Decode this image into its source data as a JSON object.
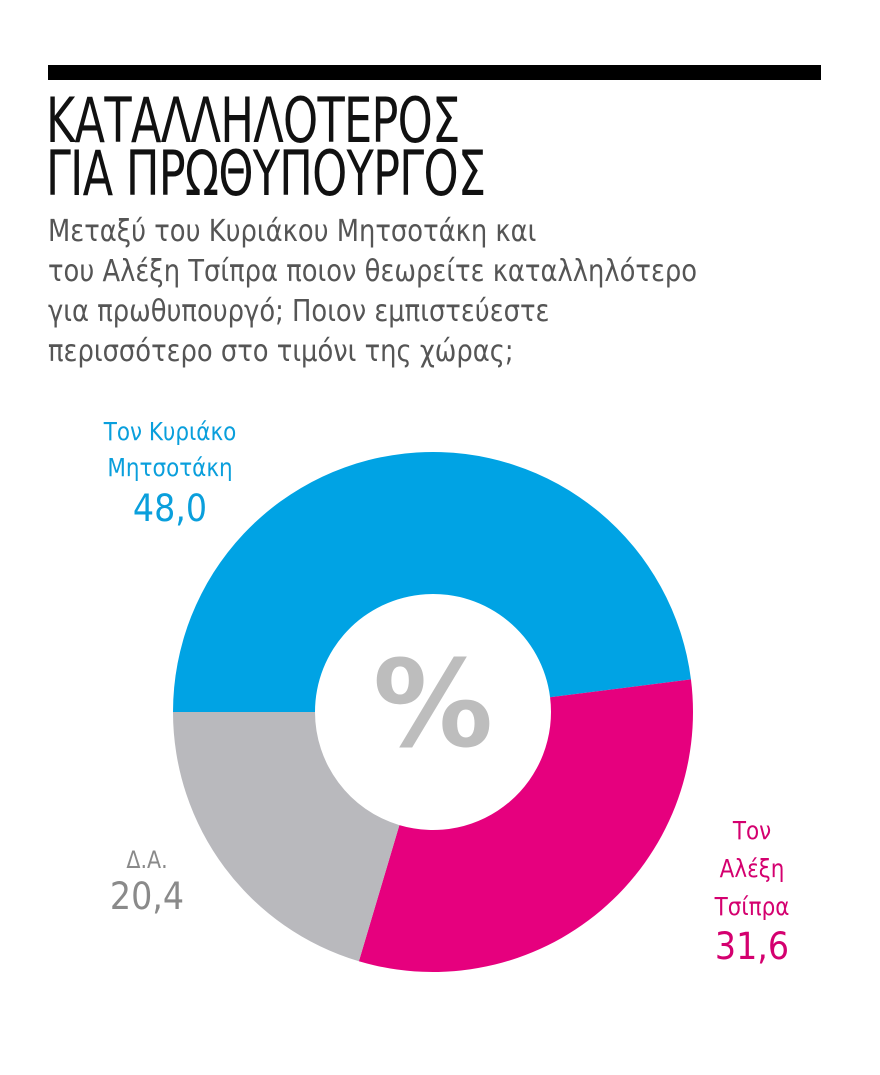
{
  "header": {
    "title_lines": [
      "ΚΑΤΑΛΛΗΛΟΤΕΡΟΣ",
      "ΓΙΑ ΠΡΩΘΥΠΟΥΡΓΟΣ"
    ],
    "subtitle_lines": [
      "Μεταξύ του Κυριάκου Μητσοτάκη και",
      "του Αλέξη Τσίπρα ποιον θεωρείτε καταλληλότερο",
      "για πρωθυπουργό; Ποιον εμπιστεύεστε",
      "περισσότερο στο τιμόνι της χώρας;"
    ]
  },
  "chart_data": {
    "type": "pie",
    "variant": "donut",
    "title": "ΚΑΤΑΛΛΗΛΟΤΕΡΟΣ ΓΙΑ ΠΡΩΘΥΠΟΥΡΓΟΣ",
    "subtitle": "Μεταξύ του Κυριάκου Μητσοτάκη και του Αλέξη Τσίπρα ποιον θεωρείτε καταλληλότερο για πρωθυπουργό; Ποιον εμπιστεύεστε περισσότερο στο τιμόνι της χώρας;",
    "unit_symbol": "%",
    "categories": [
      "Τον Κυριάκο Μητσοτάκη",
      "Τον Αλέξη Τσίπρα",
      "Δ.Α."
    ],
    "values": [
      48.0,
      31.6,
      20.4
    ],
    "value_labels": [
      "48,0",
      "31,6",
      "20,4"
    ],
    "colors": [
      "#00a3e4",
      "#e6007e",
      "#b9b9bd"
    ],
    "start_angle_deg": 180,
    "direction": "clockwise",
    "legend": "none (direct labels)",
    "grid": false
  },
  "slices": [
    {
      "name_lines": [
        "Τον Κυριάκο",
        "Μητσοτάκη"
      ],
      "value": "48,0",
      "color": "#00a3e4",
      "label_color": "#0a9fdc"
    },
    {
      "name_lines": [
        "Τον",
        "Αλέξη",
        "Τσίπρα"
      ],
      "value": "31,6",
      "color": "#e6007e",
      "label_color": "#d4006f"
    },
    {
      "name_lines": [
        "Δ.Α."
      ],
      "value": "20,4",
      "color": "#b9b9bd",
      "label_color": "#8a8a8a"
    }
  ],
  "center_symbol": "%",
  "colors": {
    "rule": "#000000",
    "title": "#111111",
    "subtitle": "#555555",
    "center_symbol": "#bdbdbd"
  }
}
